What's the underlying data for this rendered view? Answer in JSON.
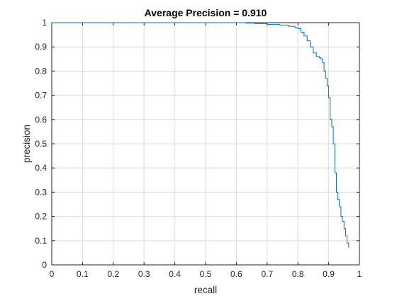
{
  "chart_data": {
    "type": "line",
    "title": "Average Precision = 0.910",
    "xlabel": "recall",
    "ylabel": "precision",
    "xlim": [
      0,
      1
    ],
    "ylim": [
      0,
      1
    ],
    "xticks": [
      "0",
      "0.1",
      "0.2",
      "0.3",
      "0.4",
      "0.5",
      "0.6",
      "0.7",
      "0.8",
      "0.9",
      "1"
    ],
    "yticks": [
      "0",
      "0.1",
      "0.2",
      "0.3",
      "0.4",
      "0.5",
      "0.6",
      "0.7",
      "0.8",
      "0.9",
      "1"
    ],
    "grid": true,
    "legend": "none",
    "line_color": "#0072BD",
    "series": [
      {
        "x": [
          0.0,
          0.6,
          0.63,
          0.66,
          0.7,
          0.74,
          0.77,
          0.79,
          0.8,
          0.81,
          0.82,
          0.83,
          0.84,
          0.85,
          0.86,
          0.87,
          0.875,
          0.88,
          0.885,
          0.89,
          0.895,
          0.9,
          0.905,
          0.91,
          0.915,
          0.92,
          0.925,
          0.93,
          0.935,
          0.94,
          0.945,
          0.95,
          0.955,
          0.96,
          0.965
        ],
        "y": [
          1.0,
          1.0,
          0.998,
          0.996,
          0.993,
          0.99,
          0.985,
          0.98,
          0.975,
          0.96,
          0.945,
          0.925,
          0.9,
          0.875,
          0.86,
          0.855,
          0.85,
          0.835,
          0.8,
          0.77,
          0.74,
          0.69,
          0.6,
          0.57,
          0.5,
          0.38,
          0.3,
          0.27,
          0.24,
          0.2,
          0.18,
          0.15,
          0.12,
          0.09,
          0.07
        ]
      }
    ]
  }
}
